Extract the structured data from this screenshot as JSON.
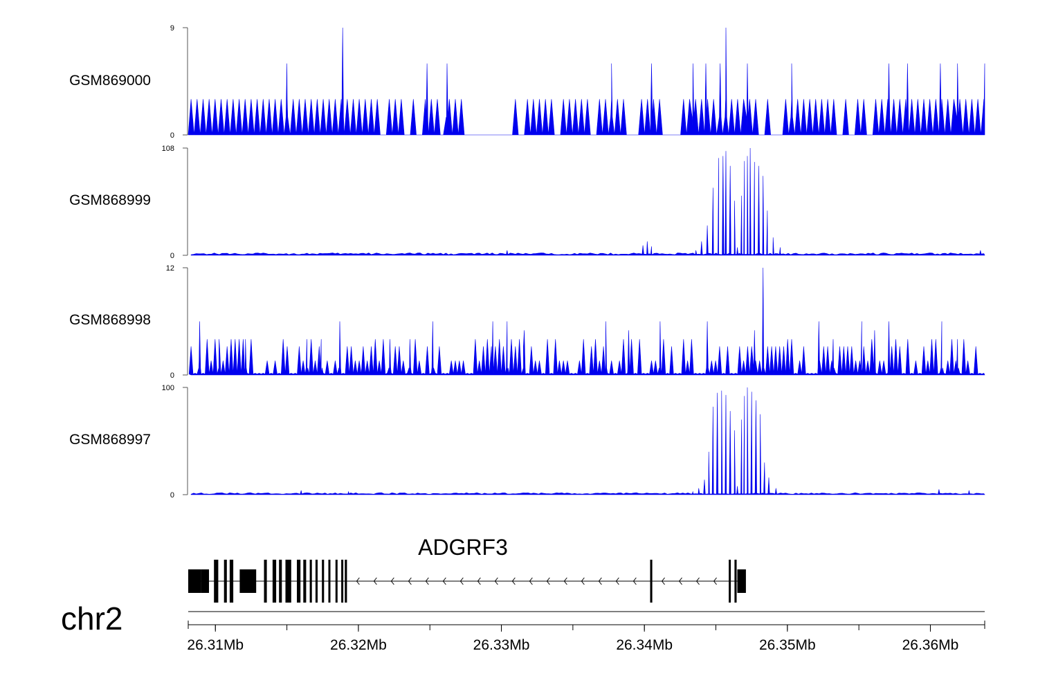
{
  "chart_data": {
    "type": "area",
    "chromosome": "chr2",
    "x_range_mb": [
      26.3081,
      26.3638
    ],
    "x_ticks": [
      {
        "value": 26.31,
        "label": "26.31Mb"
      },
      {
        "value": 26.32,
        "label": "26.32Mb"
      },
      {
        "value": 26.33,
        "label": "26.33Mb"
      },
      {
        "value": 26.34,
        "label": "26.34Mb"
      },
      {
        "value": 26.35,
        "label": "26.35Mb"
      },
      {
        "value": 26.36,
        "label": "26.36Mb"
      }
    ],
    "fill_color": "#0000ee",
    "series": [
      {
        "name": "GSM869000",
        "ymin": 0,
        "ymax": 9,
        "ymin_label": "0",
        "ymax_label": "9",
        "background": 3,
        "peaks": [
          {
            "x": 26.315,
            "y": 6.0
          },
          {
            "x": 26.3189,
            "y": 9.0
          },
          {
            "x": 26.3248,
            "y": 6.0
          },
          {
            "x": 26.3262,
            "y": 6.0
          },
          {
            "x": 26.3377,
            "y": 6.0
          },
          {
            "x": 26.3405,
            "y": 6.0
          },
          {
            "x": 26.3434,
            "y": 6.0
          },
          {
            "x": 26.3443,
            "y": 6.0
          },
          {
            "x": 26.3453,
            "y": 6.0
          },
          {
            "x": 26.3457,
            "y": 9.0
          },
          {
            "x": 26.3472,
            "y": 6.0
          },
          {
            "x": 26.3503,
            "y": 6.0
          },
          {
            "x": 26.3571,
            "y": 6.0
          },
          {
            "x": 26.3584,
            "y": 6.0
          },
          {
            "x": 26.3607,
            "y": 6.0
          },
          {
            "x": 26.3619,
            "y": 6.0
          },
          {
            "x": 26.3638,
            "y": 6.0
          }
        ],
        "gaps": [
          [
            26.3278,
            26.3306
          ],
          [
            26.3412,
            26.3426
          ]
        ]
      },
      {
        "name": "GSM868999",
        "ymin": 0,
        "ymax": 108,
        "ymin_label": "0",
        "ymax_label": "108",
        "background": 2,
        "peaks": [
          {
            "x": 26.3304,
            "y": 5
          },
          {
            "x": 26.3399,
            "y": 10
          },
          {
            "x": 26.3402,
            "y": 14
          },
          {
            "x": 26.3405,
            "y": 9
          },
          {
            "x": 26.3436,
            "y": 5
          },
          {
            "x": 26.344,
            "y": 14
          },
          {
            "x": 26.3444,
            "y": 30
          },
          {
            "x": 26.3448,
            "y": 68
          },
          {
            "x": 26.3452,
            "y": 98
          },
          {
            "x": 26.3455,
            "y": 100
          },
          {
            "x": 26.3457,
            "y": 105
          },
          {
            "x": 26.346,
            "y": 90
          },
          {
            "x": 26.3463,
            "y": 55
          },
          {
            "x": 26.3465,
            "y": 8
          },
          {
            "x": 26.3468,
            "y": 60
          },
          {
            "x": 26.347,
            "y": 95
          },
          {
            "x": 26.3472,
            "y": 100
          },
          {
            "x": 26.3474,
            "y": 108
          },
          {
            "x": 26.3477,
            "y": 94
          },
          {
            "x": 26.348,
            "y": 90
          },
          {
            "x": 26.3483,
            "y": 80
          },
          {
            "x": 26.3486,
            "y": 45
          },
          {
            "x": 26.349,
            "y": 18
          },
          {
            "x": 26.3495,
            "y": 8
          },
          {
            "x": 26.3635,
            "y": 5
          }
        ]
      },
      {
        "name": "GSM868998",
        "ymin": 0,
        "ymax": 12,
        "ymin_label": "0",
        "ymax_label": "12",
        "background": 1.6,
        "peaks": [
          {
            "x": 26.3089,
            "y": 6
          },
          {
            "x": 26.3103,
            "y": 3
          },
          {
            "x": 26.3121,
            "y": 4
          },
          {
            "x": 26.3164,
            "y": 4
          },
          {
            "x": 26.3174,
            "y": 4
          },
          {
            "x": 26.3187,
            "y": 6
          },
          {
            "x": 26.3222,
            "y": 4
          },
          {
            "x": 26.3236,
            "y": 4
          },
          {
            "x": 26.3252,
            "y": 6
          },
          {
            "x": 26.3294,
            "y": 6
          },
          {
            "x": 26.3304,
            "y": 6
          },
          {
            "x": 26.3316,
            "y": 5
          },
          {
            "x": 26.3373,
            "y": 6
          },
          {
            "x": 26.3389,
            "y": 5
          },
          {
            "x": 26.3411,
            "y": 6
          },
          {
            "x": 26.3444,
            "y": 6
          },
          {
            "x": 26.3477,
            "y": 5
          },
          {
            "x": 26.3483,
            "y": 12
          },
          {
            "x": 26.3522,
            "y": 6
          },
          {
            "x": 26.3532,
            "y": 4
          },
          {
            "x": 26.3552,
            "y": 6
          },
          {
            "x": 26.3561,
            "y": 5
          },
          {
            "x": 26.3571,
            "y": 6
          },
          {
            "x": 26.3608,
            "y": 6
          },
          {
            "x": 26.3619,
            "y": 4
          }
        ]
      },
      {
        "name": "GSM868997",
        "ymin": 0,
        "ymax": 100,
        "ymin_label": "0",
        "ymax_label": "100",
        "background": 1.5,
        "peaks": [
          {
            "x": 26.316,
            "y": 4
          },
          {
            "x": 26.3193,
            "y": 3
          },
          {
            "x": 26.3434,
            "y": 3
          },
          {
            "x": 26.3438,
            "y": 6
          },
          {
            "x": 26.3442,
            "y": 14
          },
          {
            "x": 26.3445,
            "y": 40
          },
          {
            "x": 26.3448,
            "y": 82
          },
          {
            "x": 26.3451,
            "y": 95
          },
          {
            "x": 26.3454,
            "y": 97
          },
          {
            "x": 26.3457,
            "y": 93
          },
          {
            "x": 26.346,
            "y": 78
          },
          {
            "x": 26.3463,
            "y": 60
          },
          {
            "x": 26.3465,
            "y": 8
          },
          {
            "x": 26.3468,
            "y": 70
          },
          {
            "x": 26.347,
            "y": 92
          },
          {
            "x": 26.3472,
            "y": 100
          },
          {
            "x": 26.3475,
            "y": 96
          },
          {
            "x": 26.3478,
            "y": 88
          },
          {
            "x": 26.3481,
            "y": 75
          },
          {
            "x": 26.3484,
            "y": 30
          },
          {
            "x": 26.3487,
            "y": 16
          },
          {
            "x": 26.3492,
            "y": 6
          },
          {
            "x": 26.3606,
            "y": 5
          },
          {
            "x": 26.3627,
            "y": 4
          }
        ]
      }
    ],
    "gene": {
      "name": "ADGRF3",
      "strand": "-",
      "start": 26.3081,
      "end": 26.347,
      "exons": [
        [
          26.3081,
          26.309
        ],
        [
          26.309,
          26.30955
        ],
        [
          26.3099,
          26.3102
        ],
        [
          26.3106,
          26.3108
        ],
        [
          26.311,
          26.31125
        ],
        [
          26.3117,
          26.31285
        ],
        [
          26.3134,
          26.3136
        ],
        [
          26.314,
          26.31425
        ],
        [
          26.31445,
          26.31465
        ],
        [
          26.3149,
          26.3153
        ],
        [
          26.3157,
          26.31595
        ],
        [
          26.31615,
          26.31635
        ],
        [
          26.3166,
          26.31675
        ],
        [
          26.317,
          26.31715
        ],
        [
          26.31745,
          26.3176
        ],
        [
          26.3179,
          26.318
        ],
        [
          26.3184,
          26.3185
        ],
        [
          26.3188,
          26.3189
        ],
        [
          26.31905,
          26.3192
        ],
        [
          26.3404,
          26.34055
        ],
        [
          26.3459,
          26.346
        ],
        [
          26.3463,
          26.34645
        ],
        [
          26.3465,
          26.3471
        ]
      ]
    }
  }
}
